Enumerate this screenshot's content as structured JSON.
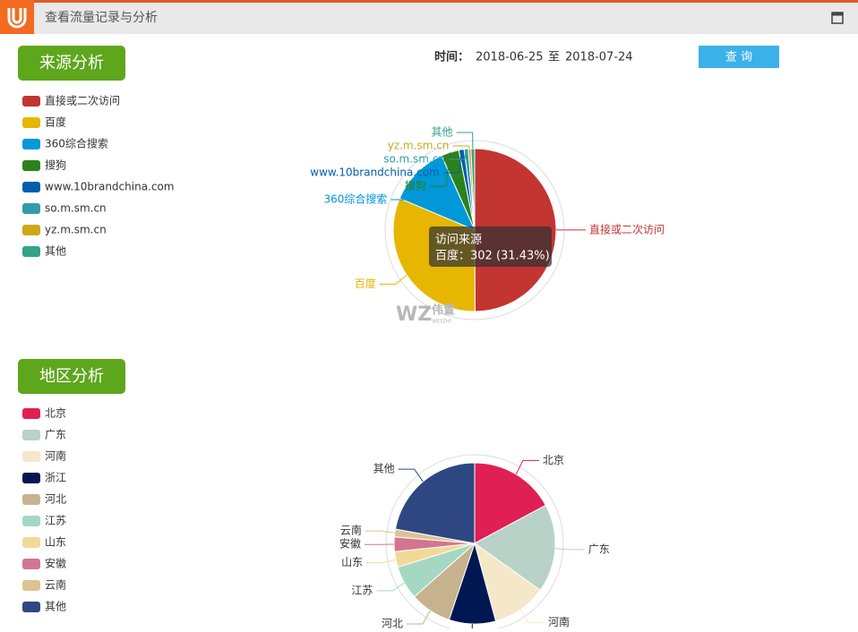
{
  "window": {
    "title": "查看流量记录与分析"
  },
  "query": {
    "time_label": "时间：",
    "start": "2018-06-25",
    "separator": "至",
    "end": "2018-07-24",
    "button": "查 询"
  },
  "sections": [
    "来源分析",
    "地区分析"
  ],
  "tooltip": {
    "text": "百度：302 (31.43%)"
  },
  "watermark": {
    "brand": "WZ",
    "name": "伟置",
    "sub": "WEIZHI"
  },
  "chart_data": [
    {
      "type": "pie",
      "name": "访问来源",
      "categories": [
        "直接或二次访问",
        "百度",
        "360综合搜索",
        "搜狗",
        "www.10brandchina.com",
        "so.m.sm.cn",
        "yz.m.sm.cn",
        "其他"
      ],
      "values": [
        480,
        302,
        115,
        34,
        10,
        8,
        5,
        7
      ],
      "colors": [
        "#c23531",
        "#e6b600",
        "#0098d9",
        "#2b821d",
        "#005eaa",
        "#339ca8",
        "#cda819",
        "#32a487"
      ],
      "label_color": "slice"
    },
    {
      "type": "pie",
      "categories": [
        "北京",
        "广东",
        "河南",
        "浙江",
        "河北",
        "江苏",
        "山东",
        "安徽",
        "云南",
        "其他"
      ],
      "values": [
        165,
        170,
        105,
        90,
        80,
        65,
        30,
        28,
        15,
        213
      ],
      "colors": [
        "#e01f54",
        "#b8d2c7",
        "#f5e8c8",
        "#001852",
        "#c6b38e",
        "#a4d8c2",
        "#f3d999",
        "#d3758f",
        "#dcc392",
        "#2e4783"
      ],
      "label_color": "#333"
    }
  ]
}
